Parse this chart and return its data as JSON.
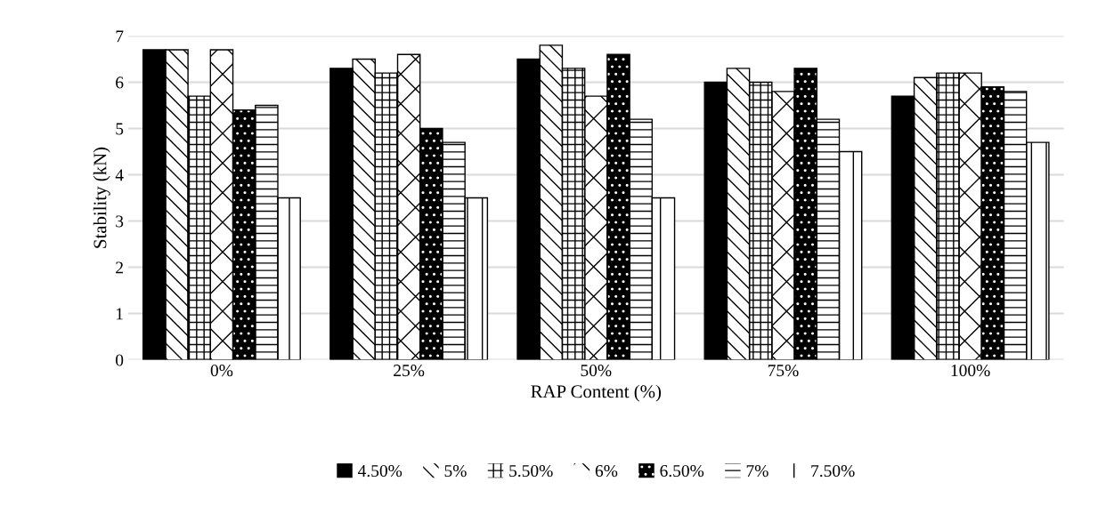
{
  "chart_data": {
    "type": "bar",
    "xlabel": "RAP Content (%)",
    "ylabel": "Stability (kN)",
    "categories": [
      "0%",
      "25%",
      "50%",
      "75%",
      "100%"
    ],
    "series": [
      {
        "name": "4.50%",
        "color": "#000000",
        "values": [
          6.7,
          6.3,
          6.5,
          6.0,
          5.7
        ]
      },
      {
        "name": "5%",
        "color": "#ffffff",
        "values": [
          6.7,
          6.5,
          6.8,
          6.3,
          6.1
        ]
      },
      {
        "name": "5.50%",
        "color": "#ffffff",
        "values": [
          5.7,
          6.2,
          6.3,
          6.0,
          6.2
        ]
      },
      {
        "name": "6%",
        "color": "#ffffff",
        "values": [
          6.7,
          6.6,
          5.7,
          5.8,
          6.2
        ]
      },
      {
        "name": "6.50%",
        "color": "#000000",
        "values": [
          5.4,
          5.0,
          6.6,
          6.3,
          5.9
        ]
      },
      {
        "name": "7%",
        "color": "#ffffff",
        "values": [
          5.5,
          4.7,
          5.2,
          5.2,
          5.8
        ]
      },
      {
        "name": "7.50%",
        "color": "#ffffff",
        "values": [
          3.5,
          3.5,
          3.5,
          4.5,
          4.7
        ]
      }
    ],
    "ylim": [
      0,
      7
    ],
    "yticks": [
      0,
      1,
      2,
      3,
      4,
      5,
      6,
      7
    ],
    "grid": "y",
    "legend": "bottom"
  }
}
